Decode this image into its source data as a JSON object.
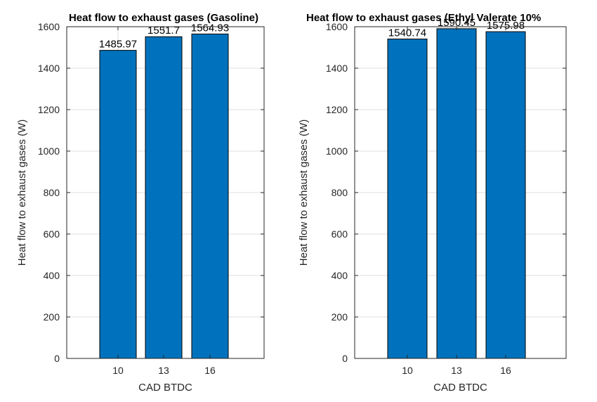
{
  "chart_data": [
    {
      "type": "bar",
      "title": "Heat flow to exhaust gases (Gasoline)",
      "xlabel": "CAD BTDC",
      "ylabel": "Heat flow to exhaust gases (W)",
      "categories": [
        "10",
        "13",
        "16"
      ],
      "values": [
        1485.97,
        1551.7,
        1564.93
      ],
      "data_labels": [
        "1485.97",
        "1551.7",
        "1564.93"
      ],
      "ylim": [
        0,
        1600
      ],
      "yticks": [
        "0",
        "200",
        "400",
        "600",
        "800",
        "1000",
        "1200",
        "1400",
        "1600"
      ],
      "grid": true,
      "bar_color": "#0072BD"
    },
    {
      "type": "bar",
      "title": "Heat flow to exhaust gases (Ethyl Valerate 10%",
      "xlabel": "CAD BTDC",
      "ylabel": "Heat flow to exhaust gases (W)",
      "categories": [
        "10",
        "13",
        "16"
      ],
      "values": [
        1540.74,
        1590.45,
        1575.98
      ],
      "data_labels": [
        "1540.74",
        "1590.45",
        "1575.98"
      ],
      "ylim": [
        0,
        1600
      ],
      "yticks": [
        "0",
        "200",
        "400",
        "600",
        "800",
        "1000",
        "1200",
        "1400",
        "1600"
      ],
      "grid": true,
      "bar_color": "#0072BD"
    }
  ]
}
